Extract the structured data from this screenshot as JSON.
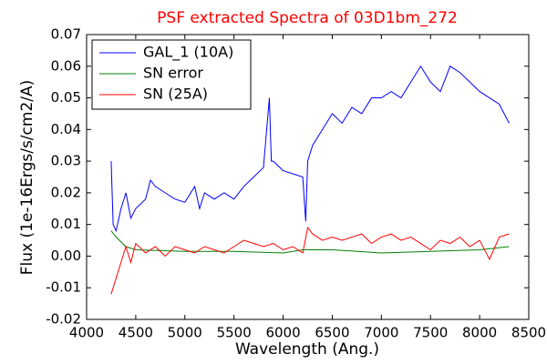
{
  "chart_data": {
    "type": "line",
    "title": "PSF extracted Spectra of 03D1bm_272",
    "title_color": "#ff0000",
    "xlabel": "Wavelength (Ang.)",
    "ylabel": "Flux (1e-16Ergs/s/cm2/A)",
    "xlim": [
      4000,
      8500
    ],
    "ylim": [
      -0.02,
      0.07
    ],
    "xticks": [
      4000,
      4500,
      5000,
      5500,
      6000,
      6500,
      7000,
      7500,
      8000,
      8500
    ],
    "yticks": [
      -0.02,
      -0.01,
      {
        "value": 0,
        "label": "0.00"
      },
      0.01,
      0.02,
      0.03,
      0.04,
      0.05,
      0.06,
      0.07
    ],
    "legend": "upper left",
    "series": [
      {
        "name": "GAL_1 (10A)",
        "color": "#0000ff",
        "x": [
          4250,
          4270,
          4300,
          4350,
          4400,
          4450,
          4500,
          4600,
          4650,
          4700,
          4800,
          4900,
          5000,
          5100,
          5150,
          5200,
          5300,
          5400,
          5500,
          5600,
          5700,
          5800,
          5860,
          5880,
          5900,
          6000,
          6100,
          6200,
          6230,
          6250,
          6300,
          6400,
          6500,
          6600,
          6700,
          6800,
          6900,
          7000,
          7100,
          7200,
          7300,
          7400,
          7500,
          7600,
          7700,
          7800,
          7900,
          8000,
          8100,
          8200,
          8300
        ],
        "values": [
          0.03,
          0.01,
          0.008,
          0.015,
          0.02,
          0.012,
          0.015,
          0.018,
          0.024,
          0.022,
          0.02,
          0.018,
          0.017,
          0.022,
          0.015,
          0.02,
          0.018,
          0.02,
          0.018,
          0.022,
          0.025,
          0.028,
          0.05,
          0.03,
          0.03,
          0.027,
          0.026,
          0.025,
          0.011,
          0.03,
          0.035,
          0.04,
          0.045,
          0.042,
          0.047,
          0.045,
          0.05,
          0.05,
          0.052,
          0.05,
          0.055,
          0.06,
          0.055,
          0.052,
          0.06,
          0.058,
          0.055,
          0.052,
          0.05,
          0.048,
          0.042
        ]
      },
      {
        "name": "SN error",
        "color": "#008000",
        "x": [
          4250,
          4300,
          4400,
          4500,
          5000,
          5500,
          6000,
          6200,
          6500,
          7000,
          7500,
          8000,
          8300
        ],
        "values": [
          0.008,
          0.006,
          0.003,
          0.002,
          0.0015,
          0.0015,
          0.001,
          0.002,
          0.002,
          0.001,
          0.0015,
          0.002,
          0.003
        ]
      },
      {
        "name": "SN (25A)",
        "color": "#ff0000",
        "x": [
          4250,
          4300,
          4350,
          4400,
          4450,
          4500,
          4600,
          4700,
          4800,
          4900,
          5000,
          5100,
          5200,
          5300,
          5400,
          5500,
          5600,
          5700,
          5800,
          5900,
          6000,
          6100,
          6200,
          6250,
          6300,
          6400,
          6500,
          6600,
          6700,
          6800,
          6900,
          7000,
          7100,
          7200,
          7300,
          7400,
          7500,
          7600,
          7700,
          7800,
          7900,
          8000,
          8100,
          8200,
          8300
        ],
        "values": [
          -0.012,
          -0.007,
          -0.002,
          0.003,
          -0.002,
          0.004,
          0.001,
          0.003,
          0,
          0.003,
          0.002,
          0.001,
          0.003,
          0.002,
          0.001,
          0.003,
          0.005,
          0.004,
          0.003,
          0.004,
          0.002,
          0.003,
          0.001,
          0.009,
          0.007,
          0.005,
          0.006,
          0.005,
          0.006,
          0.007,
          0.004,
          0.006,
          0.007,
          0.005,
          0.006,
          0.004,
          0.002,
          0.005,
          0.004,
          0.006,
          0.003,
          0.005,
          -0.001,
          0.006,
          0.007
        ]
      }
    ]
  }
}
